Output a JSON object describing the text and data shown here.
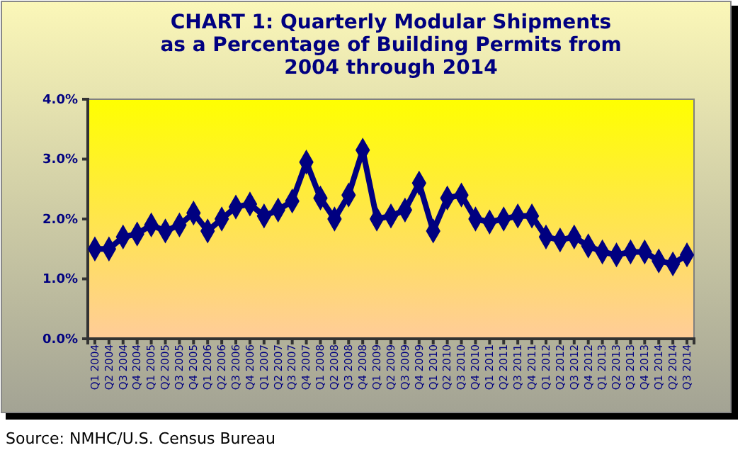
{
  "chart_data": {
    "type": "line",
    "title": "CHART 1:  Quarterly Modular Shipments as a Percentage of Building Permits from 2004 through 2014",
    "categories": [
      "Q1 2004",
      "Q2 2004",
      "Q3 2004",
      "Q4 2004",
      "Q1 2005",
      "Q2 2005",
      "Q3 2005",
      "Q4 2005",
      "Q1 2006",
      "Q2 2006",
      "Q3 2006",
      "Q4 2006",
      "Q1 2007",
      "Q2 2007",
      "Q3 2007",
      "Q4 2007",
      "Q1 2008",
      "Q2 2008",
      "Q3 2008",
      "Q4 2008",
      "Q1 2009",
      "Q2 2009",
      "Q3 2009",
      "Q4 2009",
      "Q1 2010",
      "Q2 2010",
      "Q3 2010",
      "Q4 2010",
      "Q1 2011",
      "Q2 2011",
      "Q3 2011",
      "Q4 2011",
      "Q1 2012",
      "Q2 2012",
      "Q3 2012",
      "Q4 2012",
      "Q1 2013",
      "Q2 2013",
      "Q3 2013",
      "Q4 2013",
      "Q1 2014",
      "Q2 2014",
      "Q3 2014"
    ],
    "series": [
      {
        "color": "#000080",
        "values": [
          1.5,
          1.5,
          1.7,
          1.75,
          1.9,
          1.8,
          1.9,
          2.1,
          1.8,
          2.0,
          2.2,
          2.25,
          2.05,
          2.15,
          2.3,
          2.95,
          2.35,
          2.0,
          2.4,
          3.15,
          2.0,
          2.05,
          2.15,
          2.6,
          1.8,
          2.35,
          2.4,
          2.0,
          1.95,
          2.0,
          2.05,
          2.05,
          1.7,
          1.65,
          1.7,
          1.55,
          1.45,
          1.4,
          1.45,
          1.45,
          1.3,
          1.25,
          1.4
        ]
      }
    ],
    "ylim": [
      0,
      4
    ],
    "yticks": [
      {
        "value": 0,
        "label": "0.0%"
      },
      {
        "value": 1,
        "label": "1.0%"
      },
      {
        "value": 2,
        "label": "2.0%"
      },
      {
        "value": 3,
        "label": "3.0%"
      },
      {
        "value": 4,
        "label": "4.0%"
      }
    ],
    "marker": "diamond",
    "grid": false,
    "annotations": [
      "Source:  NMHC/U.S. Census Bureau"
    ]
  }
}
